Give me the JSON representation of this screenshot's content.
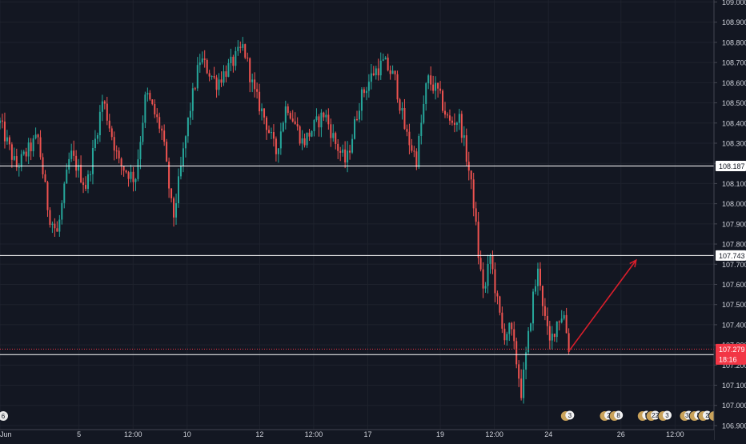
{
  "chart_data": {
    "type": "candlestick",
    "title": "",
    "xlabel": "",
    "ylabel": "",
    "ylim": [
      106.88,
      109.01
    ],
    "y_ticks": [
      "106.900",
      "107.000",
      "107.100",
      "107.200",
      "107.300",
      "107.400",
      "107.500",
      "107.600",
      "107.700",
      "107.800",
      "107.900",
      "108.000",
      "108.100",
      "108.200",
      "108.300",
      "108.400",
      "108.500",
      "108.600",
      "108.700",
      "108.800",
      "108.900",
      "109.000"
    ],
    "x_ticks": [
      {
        "label": "Jun",
        "t": 0
      },
      {
        "label": "5",
        "t": 7.3
      },
      {
        "label": "12:00",
        "t": 12.3
      },
      {
        "label": "10",
        "t": 17.3
      },
      {
        "label": "12",
        "t": 24.0
      },
      {
        "label": "12:00",
        "t": 29.0
      },
      {
        "label": "17",
        "t": 34.0
      },
      {
        "label": "19",
        "t": 40.7
      },
      {
        "label": "12:00",
        "t": 45.7
      },
      {
        "label": "24",
        "t": 50.7
      },
      {
        "label": "26",
        "t": 57.4
      },
      {
        "label": "12:00",
        "t": 62.4
      }
    ],
    "horizontal_lines": [
      {
        "value": 108.187,
        "label": "108.187",
        "color": "#ffffff"
      },
      {
        "value": 107.743,
        "label": "107.743",
        "color": "#ffffff"
      },
      {
        "value": 107.252,
        "label": "107.252",
        "color": "#ffffff"
      }
    ],
    "last_price": {
      "value": 107.279,
      "label": "107.279",
      "countdown": "18:16",
      "color": "#f23645"
    },
    "arrow": {
      "from": {
        "t": 52.6,
        "y": 107.27
      },
      "to": {
        "t": 58.8,
        "y": 107.72
      },
      "color": "#d81e2b"
    },
    "path_points": [
      [
        0,
        108.4
      ],
      [
        1.5,
        108.18
      ],
      [
        3.5,
        108.33
      ],
      [
        4.5,
        107.95
      ],
      [
        5.3,
        107.85
      ],
      [
        6.5,
        108.25
      ],
      [
        8,
        108.08
      ],
      [
        9.5,
        108.52
      ],
      [
        11,
        108.2
      ],
      [
        12.5,
        108.12
      ],
      [
        13.5,
        108.55
      ],
      [
        15,
        108.35
      ],
      [
        16,
        107.92
      ],
      [
        17.5,
        108.45
      ],
      [
        18.5,
        108.72
      ],
      [
        20,
        108.6
      ],
      [
        21.5,
        108.7
      ],
      [
        22.5,
        108.78
      ],
      [
        23.5,
        108.55
      ],
      [
        24.5,
        108.42
      ],
      [
        25.5,
        108.25
      ],
      [
        26.5,
        108.5
      ],
      [
        28,
        108.3
      ],
      [
        29,
        108.38
      ],
      [
        30,
        108.45
      ],
      [
        31,
        108.3
      ],
      [
        32,
        108.2
      ],
      [
        33.3,
        108.52
      ],
      [
        34.5,
        108.65
      ],
      [
        35.5,
        108.7
      ],
      [
        36.5,
        108.62
      ],
      [
        37.5,
        108.35
      ],
      [
        38.5,
        108.22
      ],
      [
        39.5,
        108.62
      ],
      [
        40.5,
        108.55
      ],
      [
        41.5,
        108.4
      ],
      [
        42.5,
        108.42
      ],
      [
        43.3,
        108.18
      ],
      [
        43.8,
        108.0
      ],
      [
        44.3,
        107.7
      ],
      [
        44.8,
        107.55
      ],
      [
        45.3,
        107.75
      ],
      [
        46,
        107.5
      ],
      [
        46.5,
        107.35
      ],
      [
        47.2,
        107.38
      ],
      [
        47.8,
        107.2
      ],
      [
        48.2,
        107.06
      ],
      [
        48.8,
        107.32
      ],
      [
        49.3,
        107.55
      ],
      [
        49.8,
        107.68
      ],
      [
        50.3,
        107.45
      ],
      [
        50.8,
        107.3
      ],
      [
        51.5,
        107.42
      ],
      [
        52.1,
        107.46
      ],
      [
        52.6,
        107.28
      ]
    ],
    "events_left": "6",
    "events": [
      {
        "t": 52.3,
        "label": "3"
      },
      {
        "t": 55.9,
        "label": "2"
      },
      {
        "t": 56.8,
        "label": "8"
      },
      {
        "t": 59.4,
        "label": "5"
      },
      {
        "t": 60.2,
        "label": "22"
      },
      {
        "t": 61.3,
        "label": "3"
      },
      {
        "t": 63.3,
        "label": "34"
      },
      {
        "t": 64.2,
        "label": "8"
      },
      {
        "t": 65.0,
        "label": "2"
      },
      {
        "t": 66.0,
        "label": "7"
      }
    ]
  },
  "colors": {
    "background": "#131722",
    "grid": "#1e222d",
    "text": "#d1d4dc",
    "up": "#26a69a",
    "down": "#ef5350",
    "price_line": "#f23645"
  }
}
